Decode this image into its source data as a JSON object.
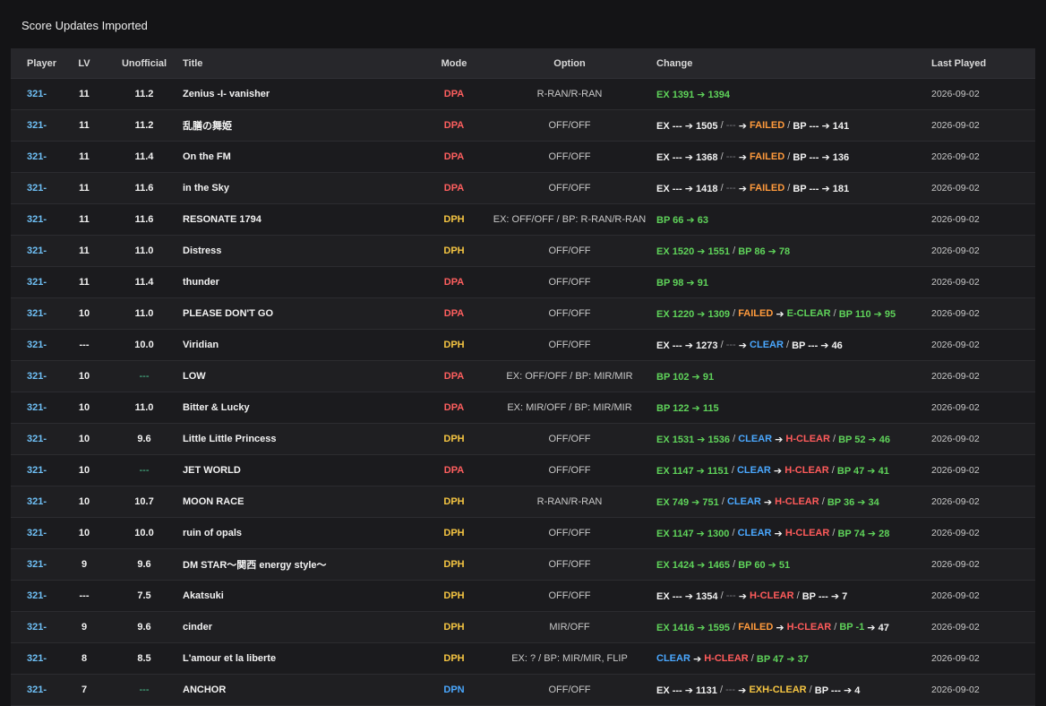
{
  "page": {
    "title": "Score Updates Imported"
  },
  "columns": {
    "player": "Player",
    "lv": "LV",
    "unofficial": "Unofficial",
    "title": "Title",
    "mode": "Mode",
    "option": "Option",
    "change": "Change",
    "last_played": "Last Played"
  },
  "colors": {
    "green": "#5fd35a",
    "orange": "#ff9a3c",
    "red": "#ff5b5b",
    "blue": "#4aa8ff",
    "yellow": "#f5c542",
    "player": "#6fc0f6"
  },
  "rows": [
    {
      "player": "321-",
      "lv": "11",
      "unofficial": "11.2",
      "title": "Zenius -I- vanisher",
      "mode": "DPA",
      "option": "R-RAN/R-RAN",
      "date": "2026-09-02",
      "change": [
        {
          "t": "EX 1391 ➔ 1394",
          "c": "green"
        }
      ]
    },
    {
      "player": "321-",
      "lv": "11",
      "unofficial": "11.2",
      "title": "乱膳の舞姫",
      "mode": "DPA",
      "option": "OFF/OFF",
      "date": "2026-09-02",
      "change": [
        {
          "t": "EX --- ➔ 1505",
          "c": "white"
        },
        {
          "t": " / ",
          "c": "sep"
        },
        {
          "t": "---",
          "c": "gray"
        },
        {
          "t": " ➔ ",
          "c": "arrow"
        },
        {
          "t": "FAILED",
          "c": "orange"
        },
        {
          "t": " / ",
          "c": "sep"
        },
        {
          "t": "BP --- ➔ 141",
          "c": "white"
        }
      ]
    },
    {
      "player": "321-",
      "lv": "11",
      "unofficial": "11.4",
      "title": "On the FM",
      "mode": "DPA",
      "option": "OFF/OFF",
      "date": "2026-09-02",
      "change": [
        {
          "t": "EX --- ➔ 1368",
          "c": "white"
        },
        {
          "t": " / ",
          "c": "sep"
        },
        {
          "t": "---",
          "c": "gray"
        },
        {
          "t": " ➔ ",
          "c": "arrow"
        },
        {
          "t": "FAILED",
          "c": "orange"
        },
        {
          "t": " / ",
          "c": "sep"
        },
        {
          "t": "BP --- ➔ 136",
          "c": "white"
        }
      ]
    },
    {
      "player": "321-",
      "lv": "11",
      "unofficial": "11.6",
      "title": "in the Sky",
      "mode": "DPA",
      "option": "OFF/OFF",
      "date": "2026-09-02",
      "change": [
        {
          "t": "EX --- ➔ 1418",
          "c": "white"
        },
        {
          "t": " / ",
          "c": "sep"
        },
        {
          "t": "---",
          "c": "gray"
        },
        {
          "t": " ➔ ",
          "c": "arrow"
        },
        {
          "t": "FAILED",
          "c": "orange"
        },
        {
          "t": " / ",
          "c": "sep"
        },
        {
          "t": "BP --- ➔ 181",
          "c": "white"
        }
      ]
    },
    {
      "player": "321-",
      "lv": "11",
      "unofficial": "11.6",
      "title": "RESONATE 1794",
      "mode": "DPH",
      "option": "EX: OFF/OFF / BP: R-RAN/R-RAN",
      "date": "2026-09-02",
      "change": [
        {
          "t": "BP 66 ➔ 63",
          "c": "green"
        }
      ]
    },
    {
      "player": "321-",
      "lv": "11",
      "unofficial": "11.0",
      "title": "Distress",
      "mode": "DPH",
      "option": "OFF/OFF",
      "date": "2026-09-02",
      "change": [
        {
          "t": "EX 1520 ➔ 1551",
          "c": "green"
        },
        {
          "t": " / ",
          "c": "sep"
        },
        {
          "t": "BP 86 ➔ 78",
          "c": "green"
        }
      ]
    },
    {
      "player": "321-",
      "lv": "11",
      "unofficial": "11.4",
      "title": "thunder",
      "mode": "DPA",
      "option": "OFF/OFF",
      "date": "2026-09-02",
      "change": [
        {
          "t": "BP 98 ➔ 91",
          "c": "green"
        }
      ]
    },
    {
      "player": "321-",
      "lv": "10",
      "unofficial": "11.0",
      "title": "PLEASE DON'T GO",
      "mode": "DPA",
      "option": "OFF/OFF",
      "date": "2026-09-02",
      "change": [
        {
          "t": "EX 1220 ➔ 1309",
          "c": "green"
        },
        {
          "t": " / ",
          "c": "sep"
        },
        {
          "t": "FAILED",
          "c": "orange"
        },
        {
          "t": " ➔ ",
          "c": "arrow"
        },
        {
          "t": "E-CLEAR",
          "c": "green"
        },
        {
          "t": " / ",
          "c": "sep"
        },
        {
          "t": "BP 110 ➔ 95",
          "c": "green"
        }
      ]
    },
    {
      "player": "321-",
      "lv": "---",
      "unofficial": "10.0",
      "title": "Viridian",
      "mode": "DPH",
      "option": "OFF/OFF",
      "date": "2026-09-02",
      "change": [
        {
          "t": "EX --- ➔ 1273",
          "c": "white"
        },
        {
          "t": " / ",
          "c": "sep"
        },
        {
          "t": "---",
          "c": "gray"
        },
        {
          "t": " ➔ ",
          "c": "arrow"
        },
        {
          "t": "CLEAR",
          "c": "blue"
        },
        {
          "t": " / ",
          "c": "sep"
        },
        {
          "t": "BP --- ➔ 46",
          "c": "white"
        }
      ]
    },
    {
      "player": "321-",
      "lv": "10",
      "unofficial": "---",
      "title": "LOW",
      "mode": "DPA",
      "option": "EX: OFF/OFF / BP: MIR/MIR",
      "date": "2026-09-02",
      "change": [
        {
          "t": "BP 102 ➔ 91",
          "c": "green"
        }
      ]
    },
    {
      "player": "321-",
      "lv": "10",
      "unofficial": "11.0",
      "title": "Bitter & Lucky",
      "mode": "DPA",
      "option": "EX: MIR/OFF / BP: MIR/MIR",
      "date": "2026-09-02",
      "change": [
        {
          "t": "BP 122 ➔ 115",
          "c": "green"
        }
      ]
    },
    {
      "player": "321-",
      "lv": "10",
      "unofficial": "9.6",
      "title": "Little Little Princess",
      "mode": "DPH",
      "option": "OFF/OFF",
      "date": "2026-09-02",
      "change": [
        {
          "t": "EX 1531 ➔ 1536",
          "c": "green"
        },
        {
          "t": " / ",
          "c": "sep"
        },
        {
          "t": "CLEAR",
          "c": "blue"
        },
        {
          "t": " ➔ ",
          "c": "arrow"
        },
        {
          "t": "H-CLEAR",
          "c": "red"
        },
        {
          "t": " / ",
          "c": "sep"
        },
        {
          "t": "BP 52 ➔ 46",
          "c": "green"
        }
      ]
    },
    {
      "player": "321-",
      "lv": "10",
      "unofficial": "---",
      "title": "JET WORLD",
      "mode": "DPA",
      "option": "OFF/OFF",
      "date": "2026-09-02",
      "change": [
        {
          "t": "EX 1147 ➔ 1151",
          "c": "green"
        },
        {
          "t": " / ",
          "c": "sep"
        },
        {
          "t": "CLEAR",
          "c": "blue"
        },
        {
          "t": " ➔ ",
          "c": "arrow"
        },
        {
          "t": "H-CLEAR",
          "c": "red"
        },
        {
          "t": " / ",
          "c": "sep"
        },
        {
          "t": "BP 47 ➔ 41",
          "c": "green"
        }
      ]
    },
    {
      "player": "321-",
      "lv": "10",
      "unofficial": "10.7",
      "title": "MOON RACE",
      "mode": "DPH",
      "option": "R-RAN/R-RAN",
      "date": "2026-09-02",
      "change": [
        {
          "t": "EX 749 ➔ 751",
          "c": "green"
        },
        {
          "t": " / ",
          "c": "sep"
        },
        {
          "t": "CLEAR",
          "c": "blue"
        },
        {
          "t": " ➔ ",
          "c": "arrow"
        },
        {
          "t": "H-CLEAR",
          "c": "red"
        },
        {
          "t": " / ",
          "c": "sep"
        },
        {
          "t": "BP 36 ➔ 34",
          "c": "green"
        }
      ]
    },
    {
      "player": "321-",
      "lv": "10",
      "unofficial": "10.0",
      "title": "ruin of opals",
      "mode": "DPH",
      "option": "OFF/OFF",
      "date": "2026-09-02",
      "change": [
        {
          "t": "EX 1147 ➔ 1300",
          "c": "green"
        },
        {
          "t": " / ",
          "c": "sep"
        },
        {
          "t": "CLEAR",
          "c": "blue"
        },
        {
          "t": " ➔ ",
          "c": "arrow"
        },
        {
          "t": "H-CLEAR",
          "c": "red"
        },
        {
          "t": " / ",
          "c": "sep"
        },
        {
          "t": "BP 74 ➔ 28",
          "c": "green"
        }
      ]
    },
    {
      "player": "321-",
      "lv": "9",
      "unofficial": "9.6",
      "title": "DM STAR～関西 energy style～",
      "mode": "DPH",
      "option": "OFF/OFF",
      "date": "2026-09-02",
      "change": [
        {
          "t": "EX 1424 ➔ 1465",
          "c": "green"
        },
        {
          "t": " / ",
          "c": "sep"
        },
        {
          "t": "BP 60 ➔ 51",
          "c": "green"
        }
      ]
    },
    {
      "player": "321-",
      "lv": "---",
      "unofficial": "7.5",
      "title": "Akatsuki",
      "mode": "DPH",
      "option": "OFF/OFF",
      "date": "2026-09-02",
      "change": [
        {
          "t": "EX --- ➔ 1354",
          "c": "white"
        },
        {
          "t": " / ",
          "c": "sep"
        },
        {
          "t": "---",
          "c": "gray"
        },
        {
          "t": " ➔ ",
          "c": "arrow"
        },
        {
          "t": "H-CLEAR",
          "c": "red"
        },
        {
          "t": " / ",
          "c": "sep"
        },
        {
          "t": "BP --- ➔ 7",
          "c": "white"
        }
      ]
    },
    {
      "player": "321-",
      "lv": "9",
      "unofficial": "9.6",
      "title": "cinder",
      "mode": "DPH",
      "option": "MIR/OFF",
      "date": "2026-09-02",
      "change": [
        {
          "t": "EX 1416 ➔ 1595",
          "c": "green"
        },
        {
          "t": " / ",
          "c": "sep"
        },
        {
          "t": "FAILED",
          "c": "orange"
        },
        {
          "t": " ➔ ",
          "c": "arrow"
        },
        {
          "t": "H-CLEAR",
          "c": "red"
        },
        {
          "t": " / ",
          "c": "sep"
        },
        {
          "t": "BP -1",
          "c": "green"
        },
        {
          "t": " ➔ 47",
          "c": "white"
        }
      ]
    },
    {
      "player": "321-",
      "lv": "8",
      "unofficial": "8.5",
      "title": "L'amour et la liberte",
      "mode": "DPH",
      "option": "EX: ? / BP: MIR/MIR, FLIP",
      "date": "2026-09-02",
      "change": [
        {
          "t": "CLEAR",
          "c": "blue"
        },
        {
          "t": " ➔ ",
          "c": "arrow"
        },
        {
          "t": "H-CLEAR",
          "c": "red"
        },
        {
          "t": " / ",
          "c": "sep"
        },
        {
          "t": "BP 47 ➔ 37",
          "c": "green"
        }
      ]
    },
    {
      "player": "321-",
      "lv": "7",
      "unofficial": "---",
      "title": "ANCHOR",
      "mode": "DPN",
      "option": "OFF/OFF",
      "date": "2026-09-02",
      "change": [
        {
          "t": "EX --- ➔ 1131",
          "c": "white"
        },
        {
          "t": " / ",
          "c": "sep"
        },
        {
          "t": "---",
          "c": "gray"
        },
        {
          "t": " ➔ ",
          "c": "arrow"
        },
        {
          "t": "EXH-CLEAR",
          "c": "yellow"
        },
        {
          "t": " / ",
          "c": "sep"
        },
        {
          "t": "BP --- ➔ 4",
          "c": "white"
        }
      ]
    }
  ]
}
